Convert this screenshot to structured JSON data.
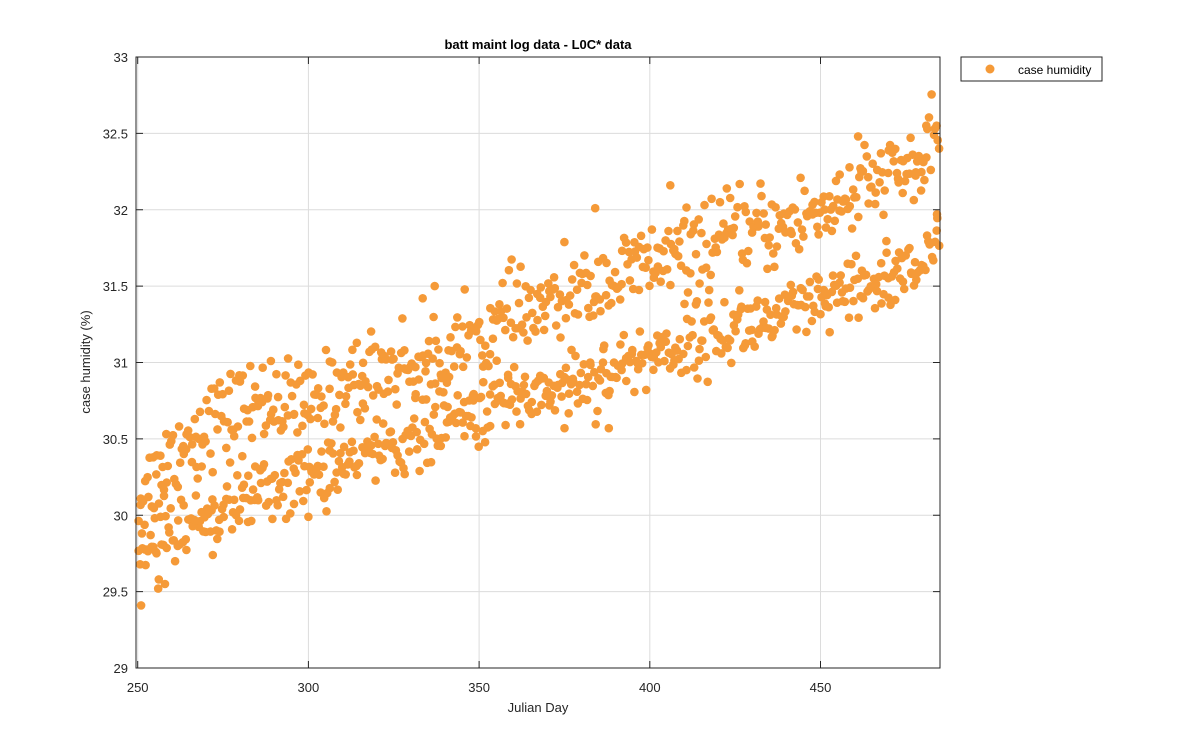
{
  "chart_data": {
    "type": "scatter",
    "title": "batt maint log data - L0C* data",
    "xlabel": "Julian Day",
    "ylabel": "case humidity (%)",
    "xlim": [
      249.5,
      485
    ],
    "ylim": [
      29,
      33
    ],
    "xticks": [
      250,
      300,
      350,
      400,
      450
    ],
    "yticks": [
      29,
      29.5,
      30,
      30.5,
      31,
      31.5,
      32,
      32.5,
      33
    ],
    "xtick_labels": [
      "250",
      "300",
      "350",
      "400",
      "450"
    ],
    "ytick_labels": [
      "29",
      "29.5",
      "30",
      "30.5",
      "31",
      "31.5",
      "32",
      "32.5",
      "33"
    ],
    "grid": true,
    "legend_position": "outside-top-right",
    "colors": {
      "series": "#f59a38",
      "axes": "#262626",
      "grid": "#dcdcdc"
    },
    "series": [
      {
        "name": "case humidity",
        "marker": "filled-circle",
        "bands": [
          {
            "label": "upper band (approximate centerline)",
            "x": [
              250,
              260,
              270,
              280,
              290,
              300,
              310,
              320,
              330,
              340,
              350,
              360,
              370,
              380,
              390,
              400,
              410,
              420,
              430,
              440,
              450,
              460,
              470,
              485
            ],
            "y": [
              30.1,
              30.4,
              30.6,
              30.7,
              30.75,
              30.7,
              30.85,
              30.95,
              31.0,
              31.05,
              31.15,
              31.3,
              31.35,
              31.45,
              31.55,
              31.65,
              31.7,
              31.8,
              31.85,
              31.9,
              32.0,
              32.1,
              32.2,
              32.35
            ],
            "spread": 0.14,
            "approx_point_count": 560
          },
          {
            "label": "lower band (approximate centerline)",
            "x": [
              250,
              260,
              270,
              280,
              290,
              300,
              310,
              320,
              330,
              340,
              350,
              360,
              370,
              380,
              390,
              400,
              410,
              420,
              430,
              440,
              450,
              460,
              470,
              485
            ],
            "y": [
              29.75,
              29.9,
              30.0,
              30.1,
              30.18,
              30.25,
              30.33,
              30.42,
              30.5,
              30.58,
              30.68,
              30.78,
              30.82,
              30.88,
              30.95,
              31.05,
              31.12,
              31.18,
              31.25,
              31.3,
              31.38,
              31.45,
              31.55,
              31.72
            ],
            "spread": 0.11,
            "approx_point_count": 560
          }
        ],
        "notable_points": [
          {
            "x": 251,
            "y": 29.41
          },
          {
            "x": 384,
            "y": 32.01
          },
          {
            "x": 406,
            "y": 32.16
          },
          {
            "x": 461,
            "y": 32.48
          },
          {
            "x": 481,
            "y": 32.55
          },
          {
            "x": 484,
            "y": 32.55
          },
          {
            "x": 388,
            "y": 30.57
          },
          {
            "x": 375,
            "y": 30.57
          },
          {
            "x": 337,
            "y": 31.5
          },
          {
            "x": 289,
            "y": 31.01
          },
          {
            "x": 300,
            "y": 29.99
          },
          {
            "x": 272,
            "y": 29.74
          },
          {
            "x": 256,
            "y": 29.52
          },
          {
            "x": 258,
            "y": 29.55
          }
        ]
      }
    ]
  }
}
